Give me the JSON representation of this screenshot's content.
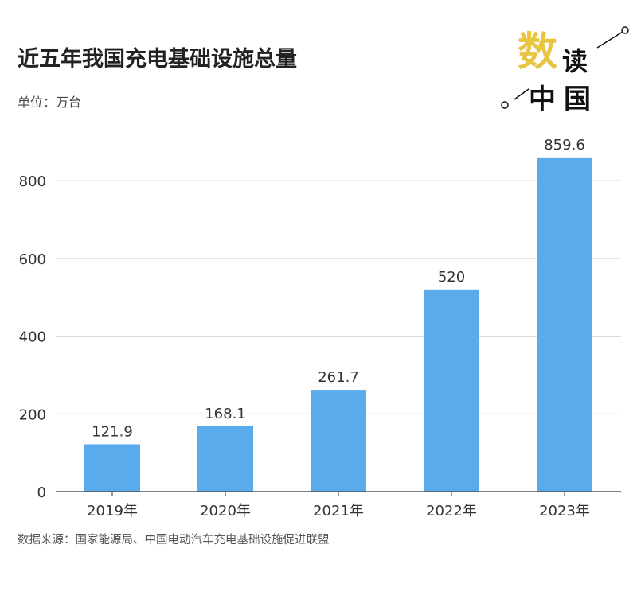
{
  "title": "近五年我国充电基础设施总量",
  "unit": "单位：万台",
  "source": "数据来源：国家能源局、中国电动汽车充电基础设施促进联盟",
  "logo": {
    "chars": [
      "数",
      "读",
      "中",
      "国"
    ],
    "accent": "#e8c440"
  },
  "chart_data": {
    "type": "bar",
    "title": "近五年我国充电基础设施总量",
    "ylabel": "单位：万台",
    "categories": [
      "2019年",
      "2020年",
      "2021年",
      "2022年",
      "2023年"
    ],
    "values": [
      121.9,
      168.1,
      261.7,
      520,
      859.6
    ],
    "labels": [
      "121.9",
      "168.1",
      "261.7",
      "520",
      "859.6"
    ],
    "ylim": [
      0,
      800
    ],
    "yticks": [
      0,
      200,
      400,
      600,
      800
    ],
    "grid": true,
    "bar_color": "#5aabec"
  }
}
